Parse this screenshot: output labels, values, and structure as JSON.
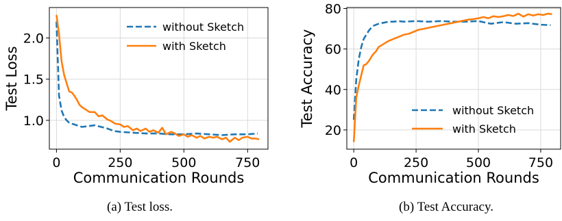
{
  "colors": {
    "without": "#1f77b4",
    "with": "#ff7f0e",
    "grid": "#d9d9d9"
  },
  "chart_data": [
    {
      "type": "line",
      "caption": "(a)  Test loss.",
      "xlabel": "Communication Rounds",
      "ylabel": "Test Loss",
      "xlim": [
        -28,
        830
      ],
      "ylim": [
        0.65,
        2.37
      ],
      "xticks": [
        0,
        250,
        500,
        750
      ],
      "yticks": [
        1.0,
        1.5,
        2.0
      ],
      "ytick_labels": [
        "1.0",
        "1.5",
        "2.0"
      ],
      "grid": true,
      "legend": "top-right",
      "series": [
        {
          "name": "without Sketch",
          "style": "dashed",
          "x": [
            0,
            10,
            20,
            30,
            40,
            50,
            60,
            70,
            80,
            90,
            100,
            125,
            150,
            175,
            200,
            225,
            250,
            300,
            350,
            400,
            450,
            500,
            550,
            600,
            650,
            700,
            750,
            790
          ],
          "y": [
            2.2,
            1.3,
            1.12,
            1.04,
            1.0,
            0.97,
            0.96,
            0.95,
            0.94,
            0.93,
            0.92,
            0.93,
            0.94,
            0.92,
            0.9,
            0.87,
            0.86,
            0.85,
            0.84,
            0.84,
            0.83,
            0.83,
            0.84,
            0.83,
            0.82,
            0.83,
            0.83,
            0.84
          ]
        },
        {
          "name": "with Sketch",
          "style": "solid",
          "x": [
            0,
            10,
            20,
            30,
            40,
            50,
            60,
            70,
            80,
            90,
            100,
            115,
            130,
            150,
            165,
            180,
            200,
            215,
            230,
            250,
            265,
            280,
            300,
            315,
            330,
            350,
            365,
            380,
            400,
            415,
            430,
            450,
            465,
            480,
            500,
            515,
            530,
            550,
            565,
            580,
            600,
            615,
            630,
            650,
            665,
            680,
            700,
            715,
            730,
            750,
            765,
            780,
            795
          ],
          "y": [
            2.28,
            2.05,
            1.72,
            1.55,
            1.45,
            1.35,
            1.34,
            1.3,
            1.25,
            1.19,
            1.16,
            1.13,
            1.1,
            1.1,
            1.05,
            1.06,
            1.01,
            0.99,
            0.96,
            0.95,
            0.92,
            0.93,
            0.88,
            0.9,
            0.87,
            0.9,
            0.86,
            0.88,
            0.85,
            0.91,
            0.83,
            0.86,
            0.84,
            0.81,
            0.83,
            0.8,
            0.82,
            0.79,
            0.81,
            0.78,
            0.8,
            0.79,
            0.8,
            0.77,
            0.79,
            0.74,
            0.79,
            0.76,
            0.79,
            0.8,
            0.78,
            0.78,
            0.77
          ]
        }
      ]
    },
    {
      "type": "line",
      "caption": "(b)  Test Accuracy.",
      "xlabel": "Communication Rounds",
      "ylabel": "Test Accuracy",
      "xlim": [
        -28,
        830
      ],
      "ylim": [
        10.5,
        80.5
      ],
      "xticks": [
        0,
        250,
        500,
        750
      ],
      "yticks": [
        20,
        40,
        60,
        80
      ],
      "ytick_labels": [
        "20",
        "40",
        "60",
        "80"
      ],
      "grid": true,
      "legend": "lower-right",
      "series": [
        {
          "name": "without Sketch",
          "style": "dashed",
          "x": [
            0,
            10,
            20,
            30,
            40,
            50,
            60,
            70,
            80,
            90,
            100,
            120,
            140,
            160,
            180,
            200,
            250,
            300,
            350,
            400,
            450,
            500,
            550,
            600,
            650,
            700,
            750,
            790
          ],
          "y": [
            25,
            45,
            55,
            61,
            65,
            67,
            69,
            70.5,
            71.5,
            72,
            72.5,
            73,
            73.5,
            73.5,
            73.8,
            73.5,
            73.8,
            73.5,
            73.8,
            73.5,
            73.5,
            73.8,
            72.5,
            73.3,
            72.5,
            72.8,
            72.0,
            71.8
          ]
        },
        {
          "name": "with Sketch",
          "style": "solid",
          "x": [
            0,
            10,
            20,
            30,
            40,
            50,
            60,
            75,
            90,
            100,
            120,
            140,
            160,
            180,
            200,
            220,
            240,
            260,
            280,
            300,
            320,
            340,
            360,
            380,
            400,
            420,
            440,
            460,
            480,
            500,
            520,
            540,
            560,
            580,
            600,
            620,
            640,
            660,
            680,
            700,
            720,
            740,
            760,
            780,
            795
          ],
          "y": [
            14,
            36,
            42,
            47,
            52,
            52.5,
            54,
            57,
            59,
            61,
            62.5,
            64,
            65,
            66,
            67,
            67.5,
            68.5,
            69.5,
            70,
            70.5,
            71,
            71.5,
            72,
            72.5,
            73,
            73.5,
            74,
            74.5,
            74.8,
            75.2,
            75.8,
            75.2,
            76.2,
            75.8,
            76.2,
            76.8,
            76.3,
            77.5,
            76,
            77.2,
            76.5,
            77.2,
            76.8,
            77.5,
            77.2
          ]
        }
      ]
    }
  ]
}
